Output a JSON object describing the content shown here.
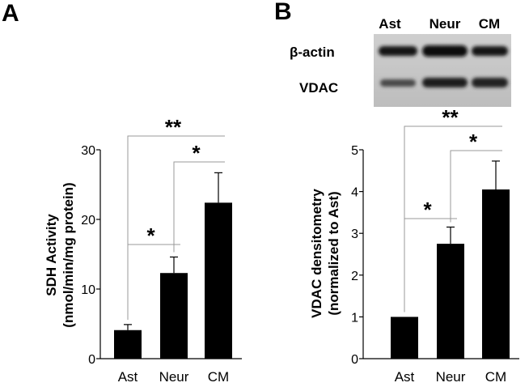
{
  "panels": {
    "a_label": "A",
    "b_label": "B"
  },
  "blot": {
    "lanes": [
      "Ast",
      "Neur",
      "CM"
    ],
    "rows": [
      "β-actin",
      "VDAC"
    ]
  },
  "chart_data": [
    {
      "type": "bar",
      "panel": "A",
      "categories": [
        "Ast",
        "Neur",
        "CM"
      ],
      "values": [
        4.1,
        12.3,
        22.4
      ],
      "errors": [
        0.8,
        2.3,
        4.3
      ],
      "ylabel_line1": "SDH Activity",
      "ylabel_line2": "(nmol/min/mg protein)",
      "ylim": [
        0,
        30
      ],
      "yticks": [
        0,
        10,
        20,
        30
      ],
      "bar_color": "#000000",
      "significance": [
        {
          "from": 0,
          "to": 1,
          "label": "*"
        },
        {
          "from": 1,
          "to": 2,
          "label": "*"
        },
        {
          "from": 0,
          "to": 2,
          "label": "**"
        }
      ]
    },
    {
      "type": "bar",
      "panel": "B",
      "categories": [
        "Ast",
        "Neur",
        "CM"
      ],
      "values": [
        1.0,
        2.75,
        4.05
      ],
      "errors": [
        0,
        0.4,
        0.68
      ],
      "ylabel_line1": "VDAC densitometry",
      "ylabel_line2": "(normalized to Ast)",
      "ylim": [
        0,
        5
      ],
      "yticks": [
        0,
        1,
        2,
        3,
        4,
        5
      ],
      "bar_color": "#000000",
      "significance": [
        {
          "from": 0,
          "to": 1,
          "label": "*"
        },
        {
          "from": 1,
          "to": 2,
          "label": "*"
        },
        {
          "from": 0,
          "to": 2,
          "label": "**"
        }
      ]
    }
  ]
}
